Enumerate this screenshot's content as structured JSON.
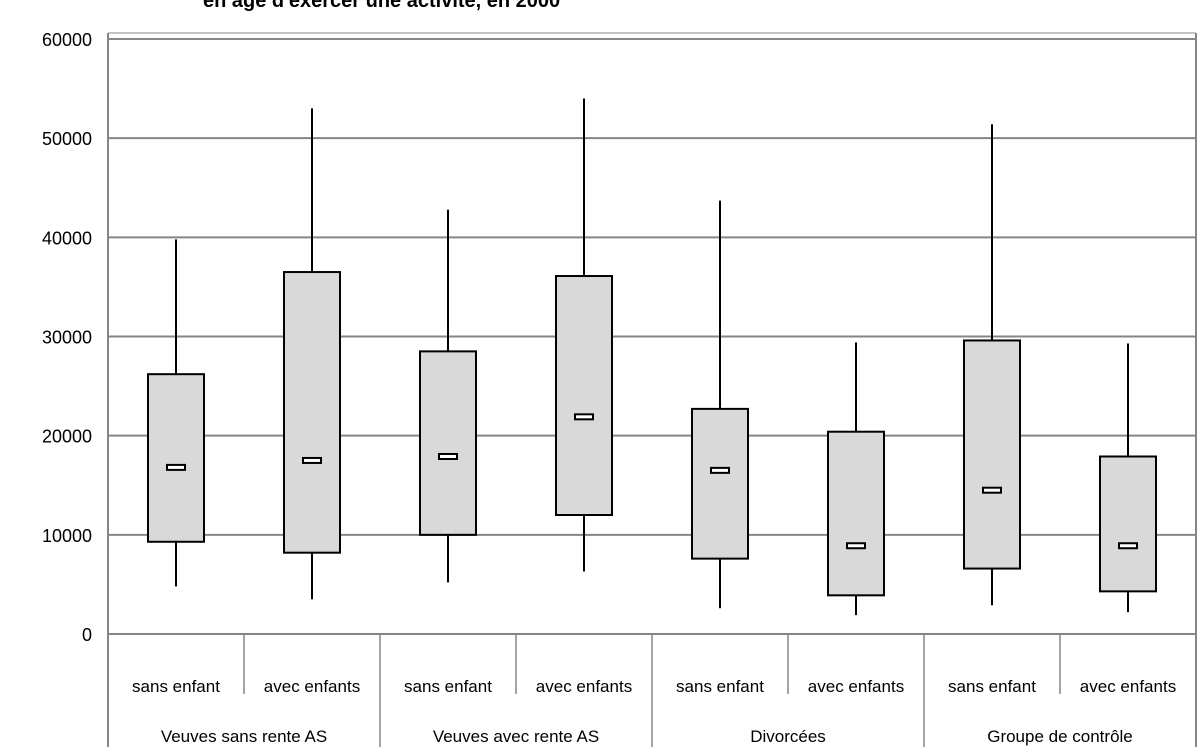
{
  "chart_data": {
    "type": "box",
    "title": "en âge d'exercer une activité, en 2000",
    "ylim": [
      0,
      60000
    ],
    "yticks": [
      0,
      10000,
      20000,
      30000,
      40000,
      50000,
      60000
    ],
    "grid": true,
    "groups": [
      {
        "label": "Veuves sans rente AS",
        "subcategories": [
          "sans enfant",
          "avec enfants"
        ]
      },
      {
        "label": "Veuves avec rente AS",
        "subcategories": [
          "sans enfant",
          "avec enfants"
        ]
      },
      {
        "label": "Divorcées",
        "subcategories": [
          "sans enfant",
          "avec enfants"
        ]
      },
      {
        "label": "Groupe de contrôle",
        "subcategories": [
          "sans enfant",
          "avec enfants"
        ]
      }
    ],
    "boxes": [
      {
        "group": "Veuves sans rente AS",
        "category": "sans enfant",
        "min": 4800,
        "q1": 9300,
        "median": 16800,
        "q3": 26200,
        "max": 39800
      },
      {
        "group": "Veuves sans rente AS",
        "category": "avec enfants",
        "min": 3500,
        "q1": 8200,
        "median": 17500,
        "q3": 36500,
        "max": 53000
      },
      {
        "group": "Veuves avec rente AS",
        "category": "sans enfant",
        "min": 5200,
        "q1": 10000,
        "median": 17900,
        "q3": 28500,
        "max": 42800
      },
      {
        "group": "Veuves avec rente AS",
        "category": "avec enfants",
        "min": 6300,
        "q1": 12000,
        "median": 21900,
        "q3": 36100,
        "max": 54000
      },
      {
        "group": "Divorcées",
        "category": "sans enfant",
        "min": 2600,
        "q1": 7600,
        "median": 16500,
        "q3": 22700,
        "max": 43700
      },
      {
        "group": "Divorcées",
        "category": "avec enfants",
        "min": 1900,
        "q1": 3900,
        "median": 8900,
        "q3": 20400,
        "max": 29400
      },
      {
        "group": "Groupe de contrôle",
        "category": "sans enfant",
        "min": 2900,
        "q1": 6600,
        "median": 14500,
        "q3": 29600,
        "max": 51400
      },
      {
        "group": "Groupe de contrôle",
        "category": "avec enfants",
        "min": 2200,
        "q1": 4300,
        "median": 8900,
        "q3": 17900,
        "max": 29300
      }
    ]
  },
  "colors": {
    "box_fill": "#d9d9d9",
    "stroke": "#000000",
    "grid": "#868686"
  }
}
